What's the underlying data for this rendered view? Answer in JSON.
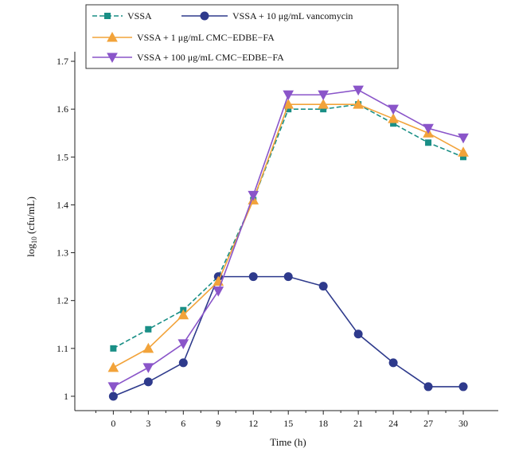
{
  "chart_data": {
    "type": "line",
    "xlabel": "Time (h)",
    "ylabel_main": "log",
    "ylabel_sub": "10",
    "ylabel_rest": " (cfu/mL)",
    "x": [
      0,
      3,
      6,
      9,
      12,
      15,
      18,
      21,
      24,
      27,
      30
    ],
    "x_tick_labels": [
      "0",
      "3",
      "6",
      "9",
      "12",
      "15",
      "18",
      "21",
      "24",
      "27",
      "30"
    ],
    "y_tick_values": [
      1,
      1.1,
      1.2,
      1.3,
      1.4,
      1.5,
      1.6,
      1.7
    ],
    "y_tick_labels": [
      "1",
      "1.1",
      "1.2",
      "1.3",
      "1.4",
      "1.5",
      "1.6",
      "1.7"
    ],
    "xlim": [
      -3.3,
      33
    ],
    "ylim": [
      0.97,
      1.72
    ],
    "grid": false,
    "legend_position": "top",
    "series": [
      {
        "name": "VSSA",
        "color": "#1a8f86",
        "marker": "square",
        "dash": "dashed",
        "values": [
          1.1,
          1.14,
          1.18,
          1.25,
          1.41,
          1.6,
          1.6,
          1.61,
          1.57,
          1.53,
          1.5
        ]
      },
      {
        "name": "VSSA + 10 μg/mL vancomycin",
        "color": "#2e3a8c",
        "marker": "circle",
        "dash": "solid",
        "values": [
          1.0,
          1.03,
          1.07,
          1.25,
          1.25,
          1.25,
          1.23,
          1.13,
          1.07,
          1.02,
          1.02
        ]
      },
      {
        "name": "VSSA + 1 μg/mL CMC−EDBE−FA",
        "color": "#f2a33a",
        "marker": "triangle-up",
        "dash": "solid",
        "values": [
          1.06,
          1.1,
          1.17,
          1.24,
          1.41,
          1.61,
          1.61,
          1.61,
          1.58,
          1.55,
          1.51
        ]
      },
      {
        "name": "VSSA + 100 μg/mL CMC−EDBE−FA",
        "color": "#8a55c9",
        "marker": "triangle-down",
        "dash": "solid",
        "values": [
          1.02,
          1.06,
          1.11,
          1.22,
          1.42,
          1.63,
          1.63,
          1.64,
          1.6,
          1.56,
          1.54
        ]
      }
    ]
  }
}
